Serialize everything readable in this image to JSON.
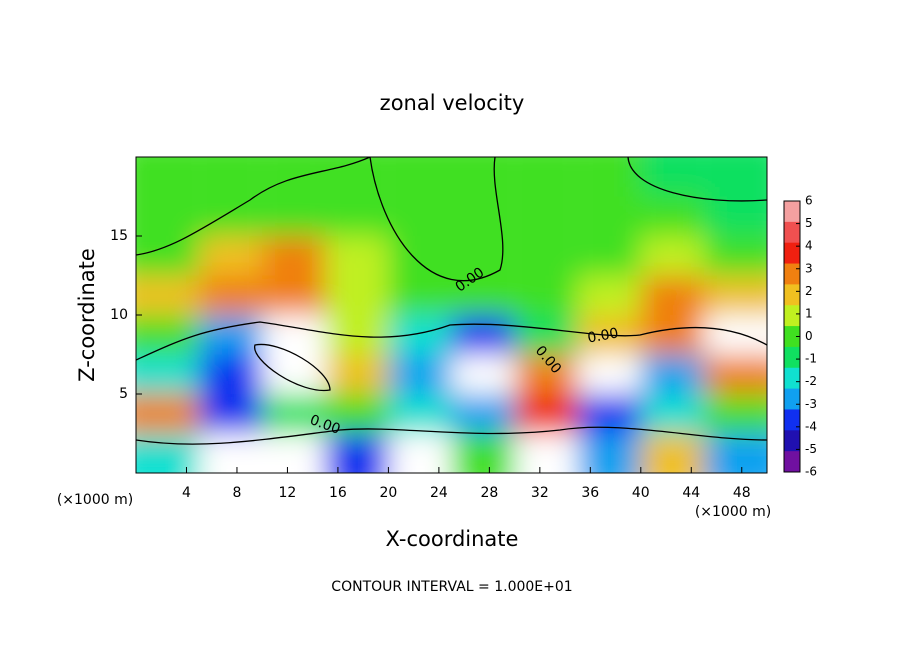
{
  "chart_data": {
    "type": "heatmap",
    "title": "zonal velocity",
    "x_label": "X-coordinate",
    "y_label": "Z-coordinate",
    "x_unit": "(×1000 m)",
    "footer": "CONTOUR INTERVAL = 1.000E+01",
    "contour_labels": [
      "0.00",
      "0.00",
      "0.00",
      "0.00"
    ],
    "xlim": [
      0,
      50
    ],
    "ylim": [
      0,
      20
    ],
    "xticks": [
      4,
      8,
      12,
      16,
      20,
      24,
      28,
      32,
      36,
      40,
      44,
      48
    ],
    "yticks": [
      5,
      10,
      15
    ],
    "x": [
      2.5,
      7.5,
      12.5,
      17.5,
      22.5,
      27.5,
      32.5,
      37.5,
      42.5,
      47.5
    ],
    "y": [
      18.75,
      16.25,
      13.75,
      11.25,
      8.75,
      6.25,
      3.75,
      1.25
    ],
    "z": [
      [
        0.5,
        0.5,
        0.5,
        0.5,
        0.5,
        0,
        0.5,
        0.5,
        -0.5,
        -1
      ],
      [
        0.5,
        0.5,
        0.5,
        0,
        0,
        0,
        0.5,
        0.5,
        0,
        -0.5
      ],
      [
        0.5,
        2,
        3,
        1,
        0,
        0,
        0.5,
        0.5,
        1,
        0.5
      ],
      [
        2,
        3,
        3,
        1,
        0,
        0,
        0.5,
        1,
        3,
        2
      ],
      [
        0,
        -3,
        8,
        1,
        -2,
        -4,
        -1,
        2,
        3,
        8
      ],
      [
        -2,
        -4,
        9,
        2,
        -3,
        9,
        3,
        9,
        -3,
        3
      ],
      [
        3,
        -4,
        -1,
        0.5,
        -2,
        -3,
        4,
        -4,
        -2,
        0
      ],
      [
        -2,
        8,
        9,
        -4,
        8,
        0,
        8,
        -3,
        2,
        -3
      ]
    ],
    "colorbar": {
      "ticks": [
        6,
        5,
        4,
        3,
        2,
        1,
        0,
        -1,
        -2,
        -3,
        -4,
        -5,
        -6
      ],
      "colors": [
        "#f4a0a0",
        "#f05050",
        "#f02010",
        "#f08010",
        "#f0c020",
        "#c0f020",
        "#40e020",
        "#10e060",
        "#10e0d0",
        "#10a0f0",
        "#1030f0",
        "#2010b0",
        "#7010a0"
      ]
    }
  }
}
